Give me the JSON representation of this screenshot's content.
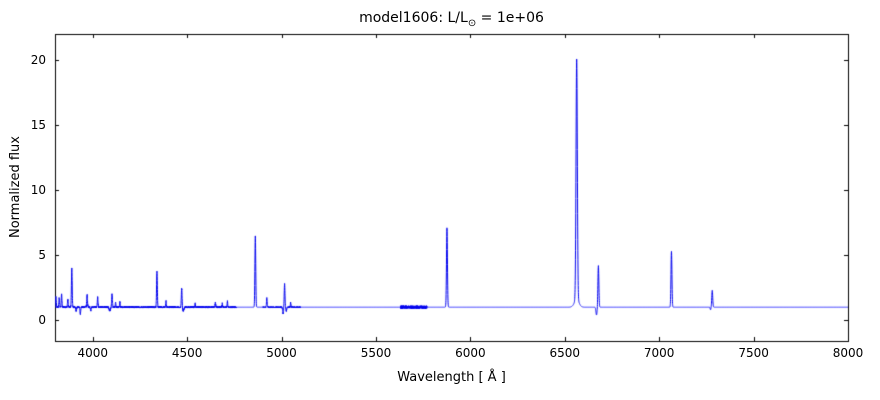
{
  "chart_data": {
    "type": "line",
    "title": "model1606: L/L⊙ = 1e+06",
    "title_parts": [
      "model1606: L/L",
      "⊙",
      " = 1e+06"
    ],
    "xlabel": "Wavelength [ Å ]",
    "ylabel": "Normalized flux",
    "xlim": [
      3800,
      8000
    ],
    "ylim": [
      -1.6,
      22
    ],
    "xticks": [
      4000,
      4500,
      5000,
      5500,
      6000,
      6500,
      7000,
      7500,
      8000
    ],
    "yticks": [
      0,
      5,
      10,
      15,
      20
    ],
    "line_color": "#0000ee",
    "frame_color": "#000000",
    "continuum": 1.0,
    "emission_lines": [
      {
        "center": 3805,
        "amplitude": 0.8,
        "sigma": 1.8
      },
      {
        "center": 3822,
        "amplitude": 0.7,
        "sigma": 1.8
      },
      {
        "center": 3835,
        "amplitude": 1.0,
        "sigma": 1.8
      },
      {
        "center": 3868,
        "amplitude": 0.6,
        "sigma": 1.8
      },
      {
        "center": 3889,
        "amplitude": 3.0,
        "sigma": 2.0
      },
      {
        "center": 3970,
        "amplitude": 1.0,
        "sigma": 2.0
      },
      {
        "center": 4026,
        "amplitude": 0.8,
        "sigma": 1.8
      },
      {
        "center": 4102,
        "amplitude": 1.0,
        "sigma": 2.0
      },
      {
        "center": 4121,
        "amplitude": 0.4,
        "sigma": 1.5
      },
      {
        "center": 4144,
        "amplitude": 0.4,
        "sigma": 1.5
      },
      {
        "center": 4340,
        "amplitude": 2.8,
        "sigma": 2.0
      },
      {
        "center": 4388,
        "amplitude": 0.5,
        "sigma": 1.5
      },
      {
        "center": 4471,
        "amplitude": 1.4,
        "sigma": 2.0
      },
      {
        "center": 4542,
        "amplitude": 0.3,
        "sigma": 1.5
      },
      {
        "center": 4649,
        "amplitude": 0.35,
        "sigma": 2.0
      },
      {
        "center": 4686,
        "amplitude": 0.3,
        "sigma": 1.5
      },
      {
        "center": 4713,
        "amplitude": 0.45,
        "sigma": 1.5
      },
      {
        "center": 4861,
        "amplitude": 5.5,
        "sigma": 2.2
      },
      {
        "center": 4922,
        "amplitude": 0.7,
        "sigma": 1.8
      },
      {
        "center": 5016,
        "amplitude": 1.8,
        "sigma": 2.0
      },
      {
        "center": 5048,
        "amplitude": 0.35,
        "sigma": 1.5
      },
      {
        "center": 5876,
        "amplitude": 6.1,
        "sigma": 2.5
      },
      {
        "center": 6563,
        "amplitude": 18.5,
        "sigma": 3.5
      },
      {
        "center": 6563,
        "amplitude": 0.6,
        "sigma": 12.0
      },
      {
        "center": 6678,
        "amplitude": 3.2,
        "sigma": 2.5
      },
      {
        "center": 7065,
        "amplitude": 4.3,
        "sigma": 2.5
      },
      {
        "center": 7281,
        "amplitude": 1.3,
        "sigma": 2.5
      }
    ],
    "absorption_lines": [
      {
        "center": 3912,
        "depth": 0.3,
        "sigma": 2.0
      },
      {
        "center": 3934,
        "depth": 0.55,
        "sigma": 2.0
      },
      {
        "center": 3990,
        "depth": 0.25,
        "sigma": 2.0
      },
      {
        "center": 4090,
        "depth": 0.3,
        "sigma": 3.0
      },
      {
        "center": 4480,
        "depth": 0.3,
        "sigma": 3.0
      },
      {
        "center": 5008,
        "depth": 0.5,
        "sigma": 2.5
      },
      {
        "center": 5025,
        "depth": 0.3,
        "sigma": 2.0
      },
      {
        "center": 6668,
        "depth": 0.6,
        "sigma": 3.0
      },
      {
        "center": 7272,
        "depth": 0.2,
        "sigma": 2.0
      }
    ],
    "noise_regions": [
      {
        "from": 3800,
        "to": 4760,
        "amp": 0.07
      },
      {
        "from": 4900,
        "to": 5100,
        "amp": 0.05
      },
      {
        "from": 5630,
        "to": 5770,
        "amp": 0.13
      }
    ]
  }
}
